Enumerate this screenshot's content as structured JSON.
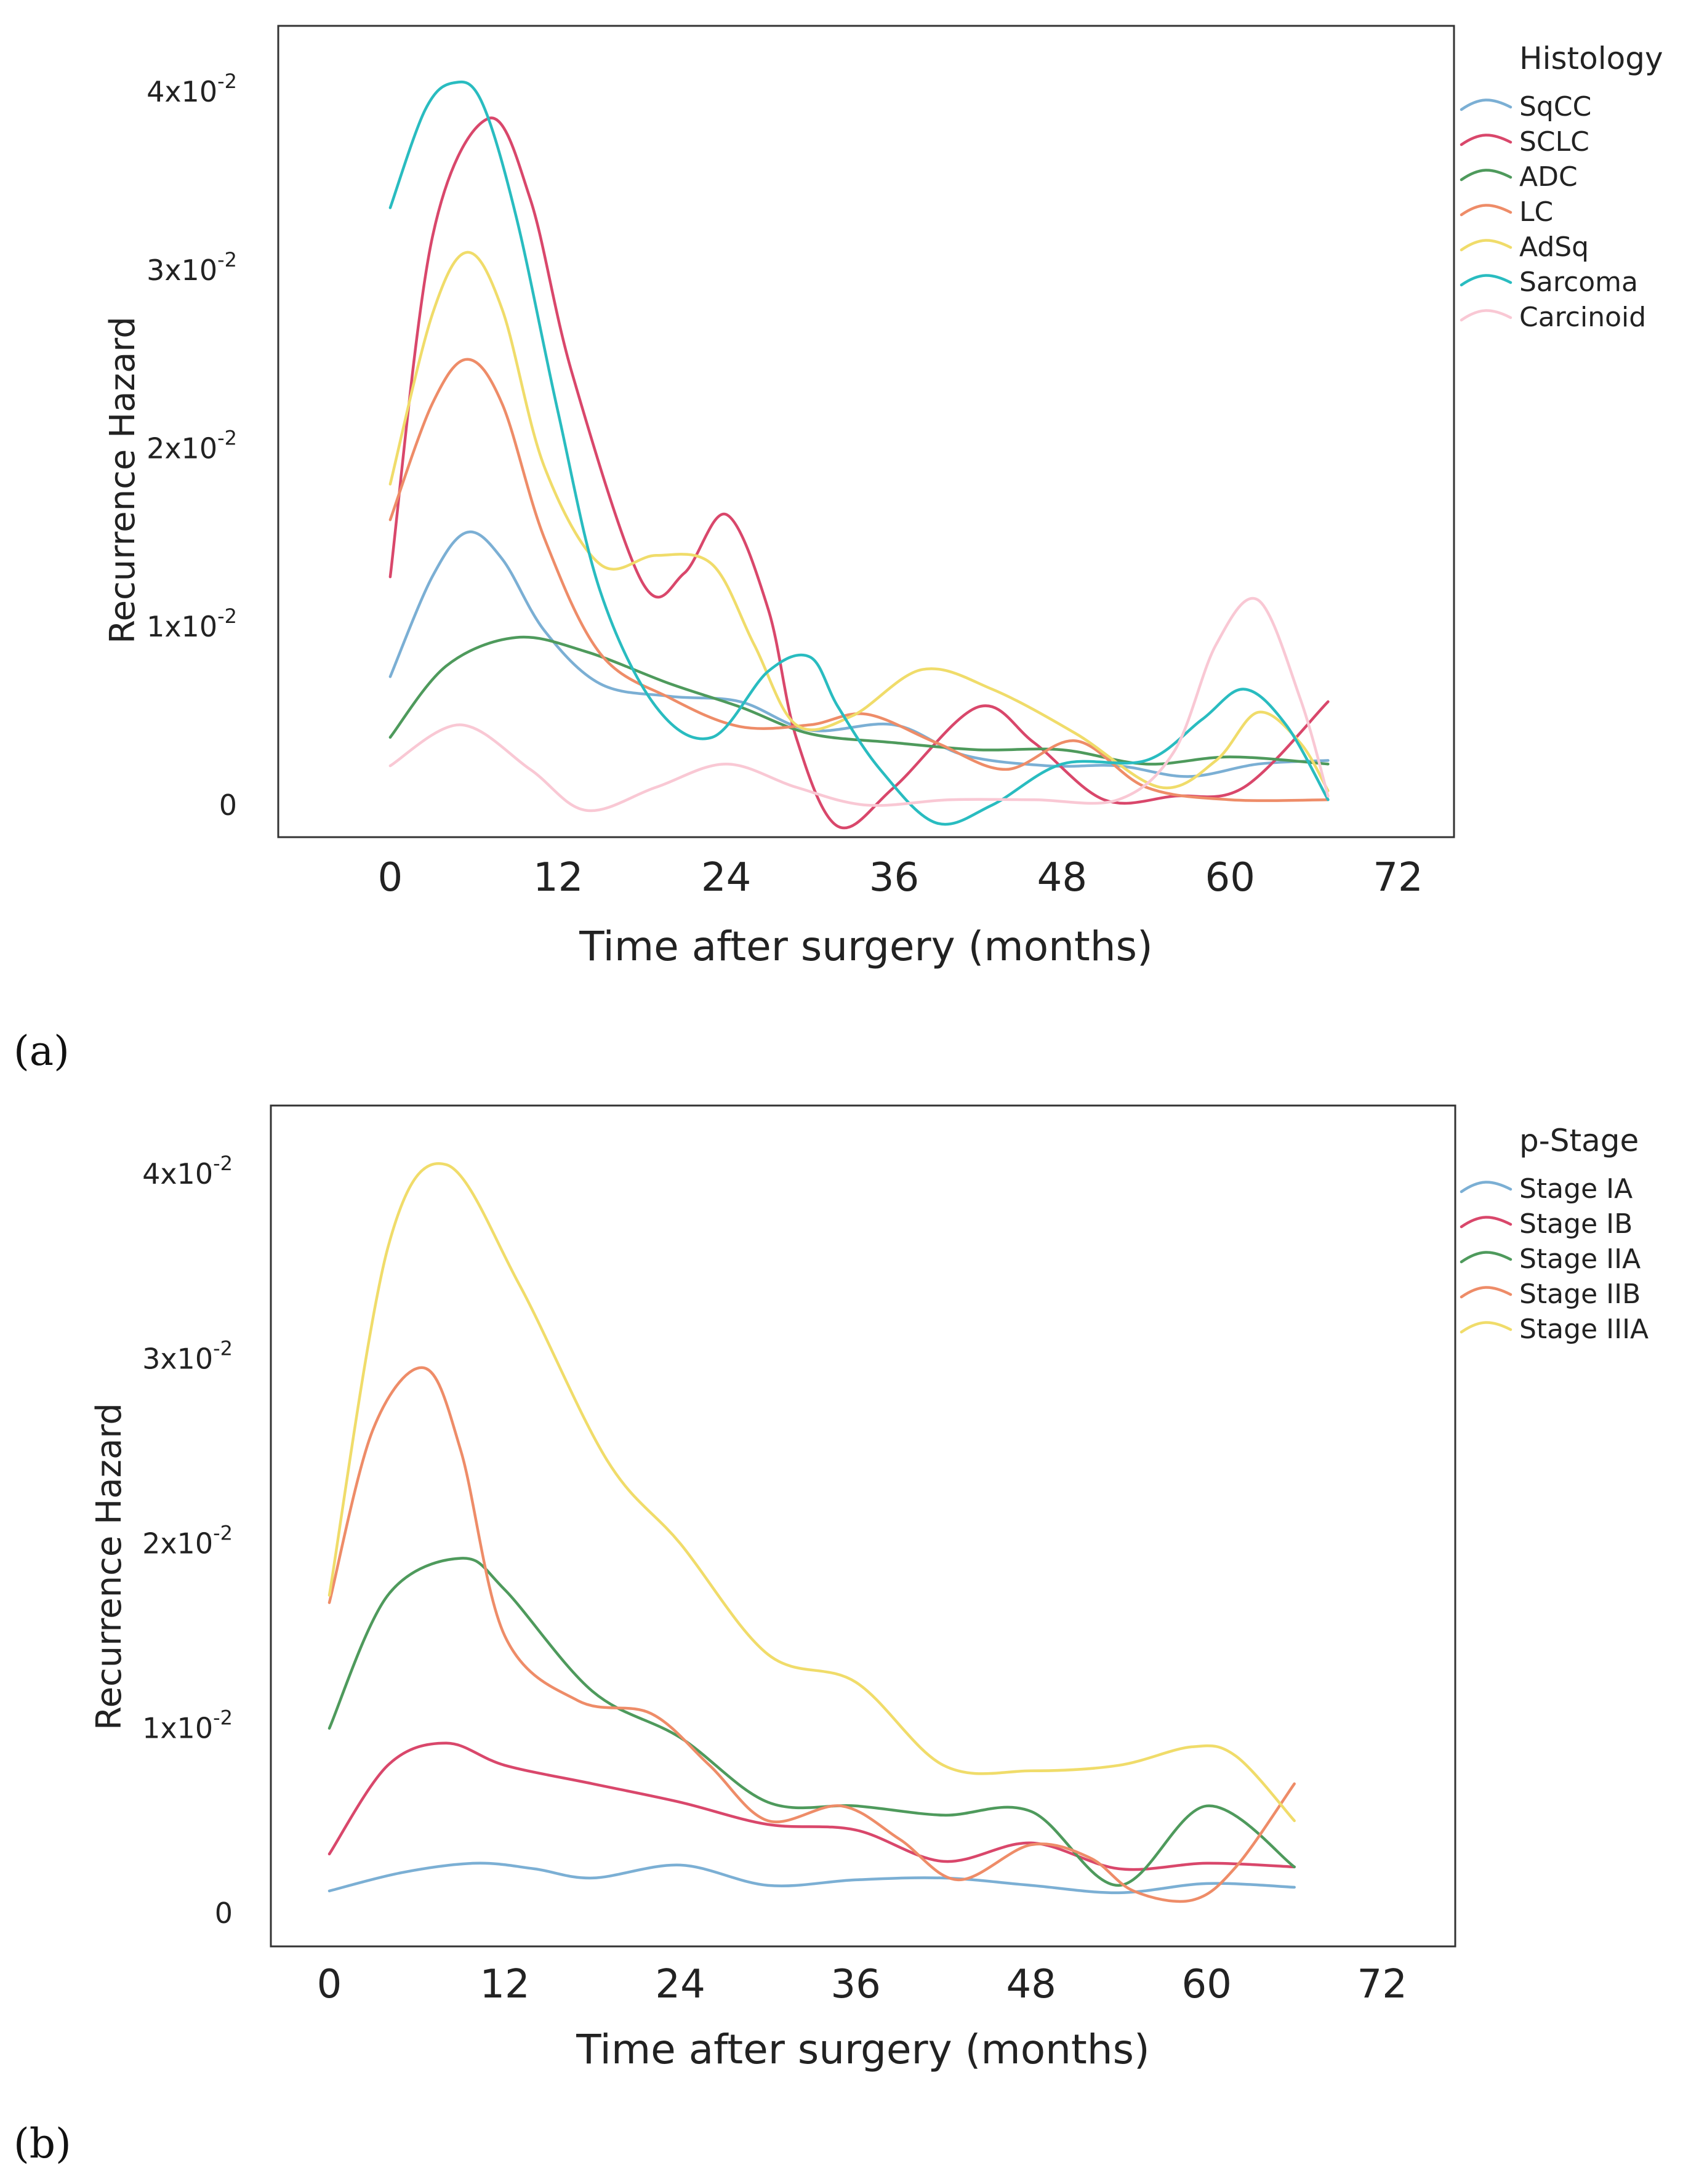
{
  "chart_data": [
    {
      "type": "line",
      "panel_label": "(a)",
      "xlabel": "Time after surgery (months)",
      "ylabel": "Recurrence Hazard",
      "xlim": [
        -8,
        76
      ],
      "ylim": [
        -0.0018,
        0.0437
      ],
      "xticks": [
        0,
        12,
        24,
        36,
        48,
        60,
        72
      ],
      "xtick_labels": [
        "0",
        "12",
        "24",
        "36",
        "48",
        "60",
        "72"
      ],
      "yticks": [
        0,
        0.01,
        0.02,
        0.03,
        0.04
      ],
      "ytick_labels": [
        {
          "mantissa": "0",
          "exp": ""
        },
        {
          "mantissa": "1x10",
          "exp": "-2"
        },
        {
          "mantissa": "2x10",
          "exp": "-2"
        },
        {
          "mantissa": "3x10",
          "exp": "-2"
        },
        {
          "mantissa": "4x10",
          "exp": "-2"
        }
      ],
      "legend_title": "Histology",
      "legend_position": "right",
      "series": [
        {
          "name": "SqCC",
          "color": "#7bafd4",
          "x": [
            0,
            3,
            5.5,
            8,
            11,
            15,
            20,
            25,
            30,
            36,
            41,
            47,
            52,
            57,
            62,
            67
          ],
          "y": [
            0.0072,
            0.0128,
            0.0153,
            0.0138,
            0.0098,
            0.0068,
            0.0061,
            0.0058,
            0.0042,
            0.0045,
            0.0028,
            0.0022,
            0.0022,
            0.0016,
            0.0023,
            0.0025
          ]
        },
        {
          "name": "SCLC",
          "color": "#d9476b",
          "x": [
            0,
            3,
            7,
            10,
            13,
            18,
            21,
            24,
            27,
            29,
            32,
            36,
            42,
            46,
            51,
            56,
            61,
            67
          ],
          "y": [
            0.0128,
            0.0318,
            0.0385,
            0.034,
            0.0242,
            0.0125,
            0.013,
            0.0163,
            0.011,
            0.0038,
            -0.0012,
            0.001,
            0.0055,
            0.0035,
            0.0003,
            0.0005,
            0.001,
            0.0058
          ]
        },
        {
          "name": "ADC",
          "color": "#4e9a5c",
          "x": [
            0,
            4,
            9,
            14,
            20,
            25,
            30,
            36,
            42,
            48,
            54,
            60,
            67
          ],
          "y": [
            0.0038,
            0.0078,
            0.0094,
            0.0086,
            0.0068,
            0.0055,
            0.004,
            0.0035,
            0.0031,
            0.0031,
            0.0023,
            0.0027,
            0.0023
          ]
        },
        {
          "name": "LC",
          "color": "#ee8c68",
          "x": [
            0,
            3,
            5.5,
            8,
            11,
            15,
            20,
            25,
            30,
            34,
            39,
            44,
            49,
            54,
            60,
            67
          ],
          "y": [
            0.016,
            0.0225,
            0.025,
            0.0225,
            0.015,
            0.0085,
            0.006,
            0.0044,
            0.0045,
            0.0051,
            0.0035,
            0.002,
            0.0036,
            0.001,
            0.0003,
            0.0003
          ]
        },
        {
          "name": "AdSq",
          "color": "#f0dc6a",
          "x": [
            0,
            3,
            5.5,
            8,
            11,
            15,
            19,
            23,
            26,
            29,
            33,
            38,
            43,
            49,
            55,
            59,
            62,
            65,
            67
          ],
          "y": [
            0.018,
            0.0275,
            0.031,
            0.0278,
            0.019,
            0.0135,
            0.014,
            0.0135,
            0.009,
            0.0045,
            0.005,
            0.0076,
            0.0065,
            0.004,
            0.001,
            0.0025,
            0.0052,
            0.0035,
            0.0008
          ]
        },
        {
          "name": "Sarcoma",
          "color": "#29bcc0",
          "x": [
            0,
            2.5,
            4.5,
            6.5,
            9,
            12,
            15,
            19,
            23,
            27,
            30,
            32,
            35,
            39,
            43,
            48,
            54,
            58,
            61,
            64,
            67
          ],
          "y": [
            0.0335,
            0.039,
            0.0405,
            0.0395,
            0.033,
            0.022,
            0.012,
            0.0055,
            0.0038,
            0.0075,
            0.0083,
            0.0055,
            0.002,
            -0.001,
            0.0,
            0.0023,
            0.0025,
            0.0048,
            0.0065,
            0.0045,
            0.0003
          ]
        },
        {
          "name": "Carcinoid",
          "color": "#f9c8d4",
          "x": [
            0,
            5,
            10,
            14,
            19,
            24,
            29,
            34,
            40,
            46,
            52,
            56,
            59,
            62,
            65,
            67
          ],
          "y": [
            0.0022,
            0.0045,
            0.002,
            -0.0003,
            0.001,
            0.0023,
            0.001,
            0.0,
            0.0003,
            0.0003,
            0.0003,
            0.003,
            0.009,
            0.0115,
            0.006,
            0.0005
          ]
        }
      ]
    },
    {
      "type": "line",
      "panel_label": "(b)",
      "xlabel": "Time after surgery (months)",
      "ylabel": "Recurrence Hazard",
      "xlim": [
        -4,
        77
      ],
      "ylim": [
        -0.0018,
        0.0437
      ],
      "xticks": [
        0,
        12,
        24,
        36,
        48,
        60,
        72
      ],
      "xtick_labels": [
        "0",
        "12",
        "24",
        "36",
        "48",
        "60",
        "72"
      ],
      "yticks": [
        0,
        0.01,
        0.02,
        0.03,
        0.04
      ],
      "ytick_labels": [
        {
          "mantissa": "0",
          "exp": ""
        },
        {
          "mantissa": "1x10",
          "exp": "-2"
        },
        {
          "mantissa": "2x10",
          "exp": "-2"
        },
        {
          "mantissa": "3x10",
          "exp": "-2"
        },
        {
          "mantissa": "4x10",
          "exp": "-2"
        }
      ],
      "legend_title": "p-Stage",
      "legend_position": "right",
      "series": [
        {
          "name": "Stage IA",
          "color": "#7bafd4",
          "x": [
            0,
            5,
            10,
            14,
            18,
            24,
            30,
            36,
            42,
            48,
            54,
            60,
            66
          ],
          "y": [
            0.0012,
            0.0022,
            0.0027,
            0.0024,
            0.0019,
            0.0026,
            0.0015,
            0.0018,
            0.0019,
            0.0015,
            0.0011,
            0.0016,
            0.0014
          ]
        },
        {
          "name": "Stage IB",
          "color": "#d9476b",
          "x": [
            0,
            4,
            8,
            12,
            18,
            24,
            30,
            36,
            42,
            48,
            54,
            60,
            66
          ],
          "y": [
            0.0032,
            0.008,
            0.0092,
            0.008,
            0.007,
            0.006,
            0.0048,
            0.0045,
            0.0028,
            0.0038,
            0.0024,
            0.0027,
            0.0025
          ]
        },
        {
          "name": "Stage IIA",
          "color": "#4e9a5c",
          "x": [
            0,
            4,
            9,
            12,
            18,
            24,
            30,
            36,
            42,
            48,
            54,
            60,
            66
          ],
          "y": [
            0.01,
            0.0172,
            0.0192,
            0.0175,
            0.012,
            0.0095,
            0.006,
            0.0058,
            0.0053,
            0.0055,
            0.0015,
            0.0058,
            0.0025
          ]
        },
        {
          "name": "Stage IIB",
          "color": "#ee8c68",
          "x": [
            0,
            3,
            6.5,
            9,
            12,
            17,
            22,
            26,
            30,
            35,
            39,
            43,
            48,
            52,
            55,
            59,
            62,
            66
          ],
          "y": [
            0.0168,
            0.0262,
            0.0295,
            0.025,
            0.015,
            0.0115,
            0.0108,
            0.008,
            0.005,
            0.0058,
            0.004,
            0.0018,
            0.0037,
            0.003,
            0.0012,
            0.0007,
            0.0025,
            0.007
          ]
        },
        {
          "name": "Stage IIIA",
          "color": "#f0dc6a",
          "x": [
            0,
            4,
            8,
            13,
            19,
            24,
            30,
            36,
            42,
            48,
            54,
            59,
            62,
            66
          ],
          "y": [
            0.0172,
            0.036,
            0.0405,
            0.034,
            0.0245,
            0.02,
            0.014,
            0.0125,
            0.008,
            0.0077,
            0.008,
            0.009,
            0.0085,
            0.005
          ]
        }
      ]
    }
  ]
}
